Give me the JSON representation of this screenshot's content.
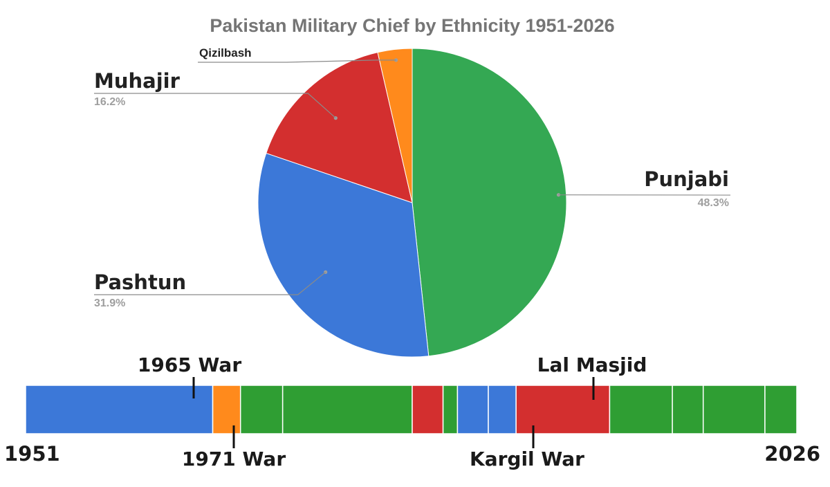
{
  "colors": {
    "Punjabi": "#34a853",
    "Pashtun": "#3c78d8",
    "Muhajir": "#d32f2f",
    "Qizilbash": "#ff8a1c",
    "timeline_punjabi": "#2f9e33"
  },
  "chart_data": [
    {
      "type": "pie",
      "title": "Pakistan Military Chief by Ethnicity 1951-2026",
      "slices": [
        {
          "label": "Punjabi",
          "value": 48.3,
          "pct_label": "48.3%"
        },
        {
          "label": "Pashtun",
          "value": 31.9,
          "pct_label": "31.9%"
        },
        {
          "label": "Muhajir",
          "value": 16.2,
          "pct_label": "16.2%"
        },
        {
          "label": "Qizilbash",
          "value": 3.6,
          "pct_label": ""
        }
      ]
    },
    {
      "type": "timeline",
      "start_label": "1951",
      "end_label": "2026",
      "range": [
        1951,
        2026
      ],
      "segments": [
        {
          "start": 1951,
          "end": 1969.2,
          "ethnicity": "Pashtun"
        },
        {
          "start": 1969.2,
          "end": 1971.9,
          "ethnicity": "Qizilbash"
        },
        {
          "start": 1971.9,
          "end": 1976.0,
          "ethnicity": "Punjabi"
        },
        {
          "start": 1976.0,
          "end": 1988.6,
          "ethnicity": "Punjabi"
        },
        {
          "start": 1988.6,
          "end": 1991.6,
          "ethnicity": "Muhajir"
        },
        {
          "start": 1991.6,
          "end": 1993.0,
          "ethnicity": "Punjabi"
        },
        {
          "start": 1993.0,
          "end": 1996.0,
          "ethnicity": "Pashtun"
        },
        {
          "start": 1996.0,
          "end": 1998.7,
          "ethnicity": "Pashtun"
        },
        {
          "start": 1998.7,
          "end": 2007.8,
          "ethnicity": "Muhajir"
        },
        {
          "start": 2007.8,
          "end": 2013.9,
          "ethnicity": "Punjabi"
        },
        {
          "start": 2013.9,
          "end": 2016.9,
          "ethnicity": "Punjabi"
        },
        {
          "start": 2016.9,
          "end": 2022.9,
          "ethnicity": "Punjabi"
        },
        {
          "start": 2022.9,
          "end": 2026,
          "ethnicity": "Punjabi"
        }
      ],
      "events": [
        {
          "label": "1965 War",
          "year": 1965,
          "position": "above"
        },
        {
          "label": "1971 War",
          "year": 1971,
          "position": "below"
        },
        {
          "label": "Lal Masjid",
          "year": 2007,
          "position": "above"
        },
        {
          "label": "Kargil War",
          "year": 1999,
          "position": "below"
        }
      ]
    }
  ]
}
